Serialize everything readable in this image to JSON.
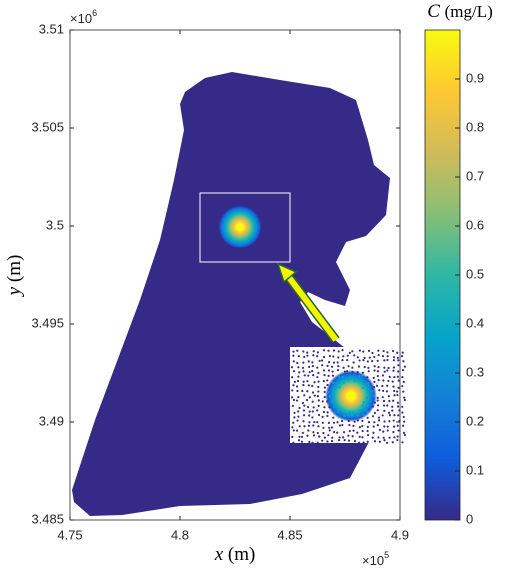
{
  "chart_data": {
    "type": "heatmap",
    "xlabel": "x",
    "xlabel_unit": "(m)",
    "ylabel": "y",
    "ylabel_unit": "(m)",
    "x_offset_base": "×10",
    "x_offset_power": "5",
    "y_offset_base": "×10",
    "y_offset_power": "6",
    "xlim": [
      475000,
      490000
    ],
    "xticks": [
      {
        "value": 475000,
        "label": "4.75"
      },
      {
        "value": 480000,
        "label": "4.8"
      },
      {
        "value": 485000,
        "label": "4.85"
      },
      {
        "value": 490000,
        "label": "4.9"
      }
    ],
    "ylim": [
      3485000,
      3510000
    ],
    "yticks": [
      {
        "value": 3485000,
        "label": "3.485"
      },
      {
        "value": 3490000,
        "label": "3.49"
      },
      {
        "value": 3495000,
        "label": "3.495"
      },
      {
        "value": 3500000,
        "label": "3.5"
      },
      {
        "value": 3505000,
        "label": "3.505"
      },
      {
        "value": 3510000,
        "label": "3.51"
      }
    ],
    "colorbar_label": "C",
    "colorbar_unit": "(mg/L)",
    "clim": [
      0,
      1
    ],
    "colorbar_ticks": [
      0,
      0.1,
      0.2,
      0.3,
      0.4,
      0.5,
      0.6,
      0.7,
      0.8,
      0.9
    ],
    "colormap": [
      "#352a87",
      "#0f5cdd",
      "#1481d6",
      "#06a4ca",
      "#2eb7a4",
      "#87bf77",
      "#d1bb59",
      "#fec832",
      "#f9fb0e"
    ]
  }
}
